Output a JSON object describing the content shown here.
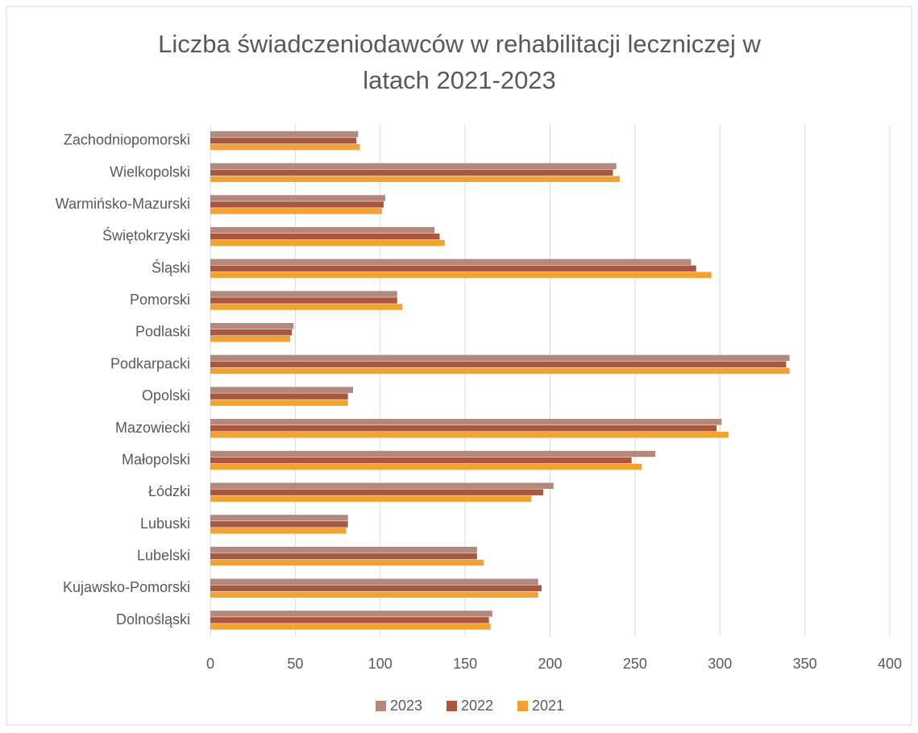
{
  "chart_data": {
    "type": "bar",
    "orientation": "horizontal",
    "title": "Liczba świadczeniodawców w rehabilitacji leczniczej w latach 2021-2023",
    "categories": [
      "Dolnośląski",
      "Kujawsko-Pomorski",
      "Lubelski",
      "Lubuski",
      "Łódzki",
      "Małopolski",
      "Mazowiecki",
      "Opolski",
      "Podkarpacki",
      "Podlaski",
      "Pomorski",
      "Śląski",
      "Świętokrzyski",
      "Warmińsko-Mazurski",
      "Wielkopolski",
      "Zachodniopomorski"
    ],
    "series": [
      {
        "name": "2023",
        "color": "#b5887c",
        "values": [
          166,
          193,
          157,
          81,
          202,
          262,
          301,
          84,
          341,
          49,
          110,
          283,
          132,
          103,
          239,
          87
        ]
      },
      {
        "name": "2022",
        "color": "#a9573f",
        "values": [
          164,
          195,
          157,
          81,
          196,
          248,
          298,
          81,
          339,
          48,
          110,
          286,
          135,
          102,
          237,
          86
        ]
      },
      {
        "name": "2021",
        "color": "#f2a233",
        "values": [
          165,
          193,
          161,
          80,
          189,
          254,
          305,
          81,
          341,
          47,
          113,
          295,
          138,
          101,
          241,
          88
        ]
      }
    ],
    "xlim": [
      0,
      400
    ],
    "xticks": [
      0,
      50,
      100,
      150,
      200,
      250,
      300,
      350,
      400
    ],
    "grid": true,
    "legend": "bottom"
  }
}
